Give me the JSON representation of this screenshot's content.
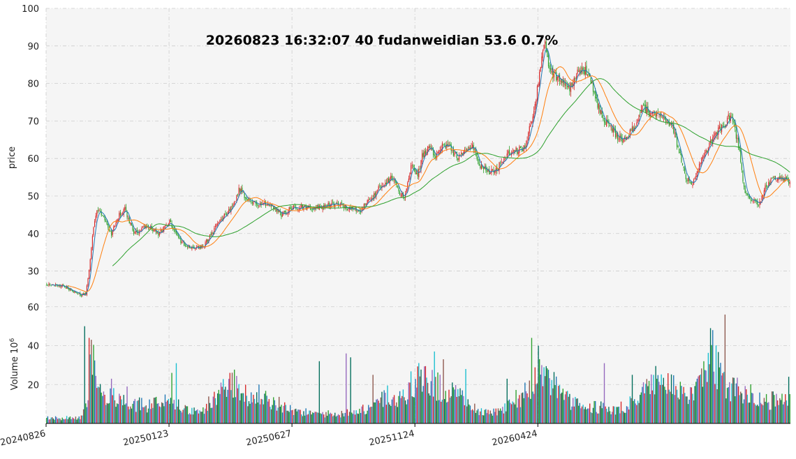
{
  "chart_data": {
    "type": "candlestick",
    "title": "20260823 16:32:07  40  fudanweidian  53.6 0.7%",
    "price_panel": {
      "ylabel": "price",
      "ylim": [
        21,
        100
      ],
      "yticks": [
        30,
        40,
        50,
        60,
        70,
        80,
        90,
        100
      ],
      "grid": true
    },
    "volume_panel": {
      "ylabel": "Volume",
      "ylabel_exponent": "6",
      "ylim": [
        0,
        61
      ],
      "yticks": [
        20,
        40,
        60
      ],
      "grid": true
    },
    "xtick_labels": [
      "20240826",
      "20250123",
      "20250627",
      "20251124",
      "20260424"
    ],
    "price_anchors": [
      [
        0,
        26.5
      ],
      [
        15,
        26.0
      ],
      [
        30,
        23.5
      ],
      [
        35,
        24.0
      ],
      [
        38,
        30.0
      ],
      [
        42,
        42.0
      ],
      [
        46,
        46.5
      ],
      [
        52,
        44.0
      ],
      [
        58,
        40.0
      ],
      [
        65,
        45.0
      ],
      [
        70,
        46.5
      ],
      [
        78,
        40.0
      ],
      [
        90,
        42.0
      ],
      [
        100,
        40.0
      ],
      [
        110,
        43.0
      ],
      [
        120,
        38.0
      ],
      [
        130,
        36.0
      ],
      [
        140,
        36.5
      ],
      [
        152,
        42.0
      ],
      [
        160,
        45.0
      ],
      [
        168,
        48.0
      ],
      [
        172,
        52.0
      ],
      [
        180,
        49.0
      ],
      [
        190,
        48.0
      ],
      [
        200,
        48.0
      ],
      [
        210,
        45.0
      ],
      [
        220,
        47.0
      ],
      [
        240,
        47.0
      ],
      [
        260,
        48.0
      ],
      [
        270,
        47.0
      ],
      [
        280,
        46.0
      ],
      [
        292,
        50.0
      ],
      [
        300,
        53.0
      ],
      [
        310,
        55.0
      ],
      [
        315,
        51.0
      ],
      [
        320,
        50.0
      ],
      [
        326,
        58.0
      ],
      [
        332,
        55.0
      ],
      [
        336,
        61.0
      ],
      [
        342,
        63.0
      ],
      [
        348,
        60.0
      ],
      [
        354,
        64.0
      ],
      [
        360,
        63.0
      ],
      [
        368,
        60.0
      ],
      [
        374,
        62.0
      ],
      [
        382,
        63.0
      ],
      [
        388,
        58.0
      ],
      [
        396,
        56.0
      ],
      [
        402,
        57.0
      ],
      [
        412,
        61.0
      ],
      [
        420,
        62.0
      ],
      [
        428,
        63.0
      ],
      [
        434,
        70.0
      ],
      [
        438,
        76.0
      ],
      [
        443,
        88.0
      ],
      [
        446,
        92.0
      ],
      [
        450,
        83.0
      ],
      [
        455,
        82.0
      ],
      [
        460,
        80.0
      ],
      [
        468,
        79.0
      ],
      [
        474,
        83.0
      ],
      [
        480,
        84.0
      ],
      [
        486,
        82.0
      ],
      [
        490,
        77.0
      ],
      [
        496,
        72.0
      ],
      [
        502,
        69.0
      ],
      [
        510,
        66.0
      ],
      [
        516,
        65.0
      ],
      [
        522,
        67.0
      ],
      [
        528,
        69.0
      ],
      [
        532,
        74.0
      ],
      [
        536,
        73.0
      ],
      [
        542,
        72.0
      ],
      [
        550,
        72.0
      ],
      [
        556,
        70.0
      ],
      [
        560,
        68.0
      ],
      [
        566,
        62.0
      ],
      [
        572,
        55.0
      ],
      [
        578,
        53.0
      ],
      [
        584,
        58.0
      ],
      [
        590,
        62.0
      ],
      [
        596,
        65.0
      ],
      [
        602,
        68.0
      ],
      [
        606,
        69.0
      ],
      [
        610,
        71.0
      ],
      [
        614,
        70.0
      ],
      [
        620,
        62.0
      ],
      [
        624,
        52.0
      ],
      [
        628,
        50.0
      ],
      [
        632,
        49.0
      ],
      [
        638,
        48.0
      ],
      [
        642,
        52.0
      ],
      [
        648,
        54.0
      ],
      [
        654,
        55.0
      ],
      [
        660,
        54.5
      ],
      [
        665,
        53.6
      ]
    ],
    "volume_anchors": [
      [
        0,
        3
      ],
      [
        30,
        3
      ],
      [
        34,
        8
      ],
      [
        38,
        22
      ],
      [
        40,
        38
      ],
      [
        44,
        25
      ],
      [
        48,
        18
      ],
      [
        52,
        12
      ],
      [
        60,
        16
      ],
      [
        68,
        14
      ],
      [
        75,
        11
      ],
      [
        90,
        10
      ],
      [
        100,
        11
      ],
      [
        110,
        12
      ],
      [
        120,
        10
      ],
      [
        130,
        7
      ],
      [
        140,
        7
      ],
      [
        145,
        12
      ],
      [
        155,
        18
      ],
      [
        162,
        20
      ],
      [
        168,
        22
      ],
      [
        175,
        17
      ],
      [
        185,
        14
      ],
      [
        195,
        13
      ],
      [
        205,
        12
      ],
      [
        215,
        8
      ],
      [
        225,
        6
      ],
      [
        240,
        6
      ],
      [
        260,
        5
      ],
      [
        280,
        7
      ],
      [
        290,
        9
      ],
      [
        300,
        13
      ],
      [
        305,
        16
      ],
      [
        310,
        11
      ],
      [
        320,
        14
      ],
      [
        328,
        24
      ],
      [
        335,
        25
      ],
      [
        345,
        22
      ],
      [
        352,
        20
      ],
      [
        360,
        18
      ],
      [
        370,
        15
      ],
      [
        380,
        9
      ],
      [
        390,
        7
      ],
      [
        400,
        6
      ],
      [
        410,
        8
      ],
      [
        418,
        13
      ],
      [
        425,
        15
      ],
      [
        430,
        20
      ],
      [
        440,
        27
      ],
      [
        447,
        25
      ],
      [
        455,
        20
      ],
      [
        462,
        15
      ],
      [
        470,
        11
      ],
      [
        480,
        10
      ],
      [
        495,
        9
      ],
      [
        510,
        8
      ],
      [
        520,
        10
      ],
      [
        530,
        14
      ],
      [
        535,
        20
      ],
      [
        542,
        24
      ],
      [
        550,
        23
      ],
      [
        558,
        22
      ],
      [
        565,
        18
      ],
      [
        572,
        14
      ],
      [
        580,
        16
      ],
      [
        588,
        28
      ],
      [
        592,
        34
      ],
      [
        596,
        42
      ],
      [
        600,
        30
      ],
      [
        606,
        24
      ],
      [
        612,
        20
      ],
      [
        620,
        18
      ],
      [
        628,
        16
      ],
      [
        636,
        14
      ],
      [
        645,
        12
      ],
      [
        655,
        14
      ],
      [
        665,
        16
      ]
    ],
    "volume_spikes": [
      [
        34,
        50
      ],
      [
        38,
        44
      ],
      [
        41,
        25
      ],
      [
        58,
        23
      ],
      [
        72,
        19
      ],
      [
        112,
        26
      ],
      [
        116,
        31
      ],
      [
        156,
        21
      ],
      [
        190,
        20
      ],
      [
        244,
        32
      ],
      [
        268,
        36
      ],
      [
        272,
        34
      ],
      [
        292,
        25
      ],
      [
        325,
        21
      ],
      [
        347,
        37
      ],
      [
        355,
        33
      ],
      [
        375,
        28
      ],
      [
        412,
        23
      ],
      [
        434,
        44
      ],
      [
        440,
        40
      ],
      [
        443,
        30
      ],
      [
        499,
        31
      ],
      [
        524,
        25
      ],
      [
        588,
        32
      ],
      [
        596,
        48
      ],
      [
        607,
        56
      ],
      [
        664,
        24
      ]
    ],
    "moving_averages": [
      {
        "window": 5,
        "color": "#1f77b4"
      },
      {
        "window": 20,
        "color": "#ff7f0e"
      },
      {
        "window": 60,
        "color": "#2ca02c"
      }
    ],
    "candle_count": 666,
    "colors": {
      "up": "#d62728",
      "down": "#2ca02c",
      "volume_palette": [
        "#2ca02c",
        "#1f77b4",
        "#9467bd",
        "#d62728",
        "#17becf",
        "#8c564b",
        "#006d5b"
      ],
      "background": "#f5f5f5",
      "grid": "#cccccc"
    }
  }
}
